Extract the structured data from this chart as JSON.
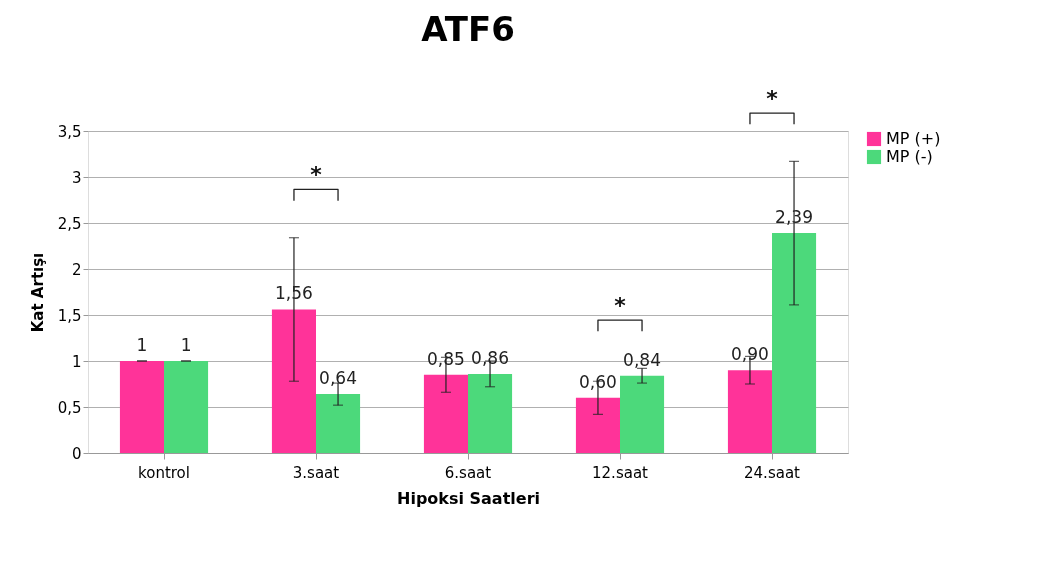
{
  "chart_data": {
    "type": "bar",
    "title": "ATF6",
    "xlabel": "Hipoksi Saatleri",
    "ylabel": "Kat Artışı",
    "categories": [
      "kontrol",
      "3.saat",
      "6.saat",
      "12.saat",
      "24.saat"
    ],
    "series": [
      {
        "name": "MP (+)",
        "color": "#ff3399",
        "values": [
          1,
          1.56,
          0.85,
          0.6,
          0.9
        ],
        "errors": [
          0,
          0.78,
          0.19,
          0.18,
          0.15
        ],
        "value_labels": [
          "1",
          "1,56",
          "0,85",
          "0,60",
          "0,90"
        ]
      },
      {
        "name": "MP (-)",
        "color": "#4cd97b",
        "values": [
          1,
          0.64,
          0.86,
          0.84,
          2.39
        ],
        "errors": [
          0,
          0.12,
          0.14,
          0.08,
          0.78
        ],
        "value_labels": [
          "1",
          "0,64",
          "0,86",
          "0,84",
          "2,39"
        ]
      }
    ],
    "ylim": [
      0,
      3.5
    ],
    "yticks": [
      0,
      {
        "value": 0.5,
        "label": "0,5"
      },
      1,
      {
        "value": 1.5,
        "label": "1,5"
      },
      2,
      {
        "value": 2.5,
        "label": "2,5"
      },
      3,
      {
        "value": 3.5,
        "label": "3,5"
      }
    ],
    "grid": "y",
    "legend": "right",
    "annotations": [
      "*",
      "*",
      "*"
    ]
  }
}
